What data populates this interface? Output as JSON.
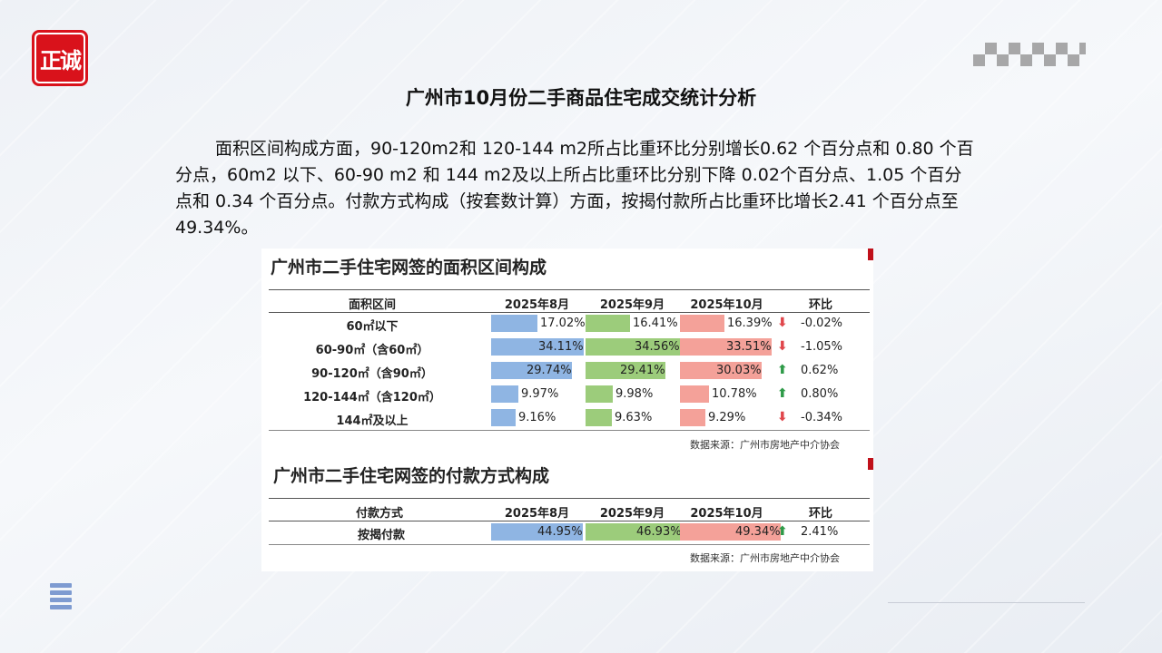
{
  "logo_text": "正诚",
  "title": "广州市10月份二手商品住宅成交统计分析",
  "body_text": "面积区间构成方面，90-120m2和 120-144 m2所占比重环比分别增长0.62 个百分点和 0.80 个百分点，60m2 以下、60-90 m2 和 144 m2及以上所占比重环比分别下降 0.02个百分点、1.05 个百分点和 0.34 个百分点。付款方式构成（按套数计算）方面，按揭付款所占比重环比增长2.41 个百分点至49.34%。",
  "table1": {
    "title": "广州市二手住宅网签的面积区间构成",
    "headers": [
      "面积区间",
      "2025年8月",
      "2025年9月",
      "2025年10月",
      "环比"
    ],
    "rows": [
      {
        "label": "60㎡以下",
        "aug": "17.02%",
        "sep": "16.41%",
        "oct": "16.39%",
        "change": "-0.02%",
        "direction": "down",
        "aug_v": 17.02,
        "sep_v": 16.41,
        "oct_v": 16.39
      },
      {
        "label": "60-90㎡（含60㎡）",
        "aug": "34.11%",
        "sep": "34.56%",
        "oct": "33.51%",
        "change": "-1.05%",
        "direction": "down",
        "aug_v": 34.11,
        "sep_v": 34.56,
        "oct_v": 33.51
      },
      {
        "label": "90-120㎡（含90㎡）",
        "aug": "29.74%",
        "sep": "29.41%",
        "oct": "30.03%",
        "change": "0.62%",
        "direction": "up",
        "aug_v": 29.74,
        "sep_v": 29.41,
        "oct_v": 30.03
      },
      {
        "label": "120-144㎡（含120㎡）",
        "aug": "9.97%",
        "sep": "9.98%",
        "oct": "10.78%",
        "change": "0.80%",
        "direction": "up",
        "aug_v": 9.97,
        "sep_v": 9.98,
        "oct_v": 10.78
      },
      {
        "label": "144㎡及以上",
        "aug": "9.16%",
        "sep": "9.63%",
        "oct": "9.29%",
        "change": "-0.34%",
        "direction": "down",
        "aug_v": 9.16,
        "sep_v": 9.63,
        "oct_v": 9.29
      }
    ],
    "source": "数据来源：广州市房地产中介协会"
  },
  "table2": {
    "title": "广州市二手住宅网签的付款方式构成",
    "headers": [
      "付款方式",
      "2025年8月",
      "2025年9月",
      "2025年10月",
      "环比"
    ],
    "rows": [
      {
        "label": "按揭付款",
        "aug": "44.95%",
        "sep": "46.93%",
        "oct": "49.34%",
        "change": "2.41%",
        "direction": "up",
        "aug_v": 44.95,
        "sep_v": 46.93,
        "oct_v": 49.34
      }
    ],
    "source": "数据来源：广州市房地产中介协会"
  },
  "colors": {
    "aug_bar": "#8fb5e3",
    "sep_bar": "#9ccc7b",
    "oct_bar": "#f4a199",
    "up_arrow": "#2e9a48",
    "down_arrow": "#e0464b",
    "logo_red": "#d9121b"
  },
  "icons": {
    "menu": "hamburger-menu-icon",
    "up": "up-arrow-icon",
    "down": "down-arrow-icon"
  }
}
